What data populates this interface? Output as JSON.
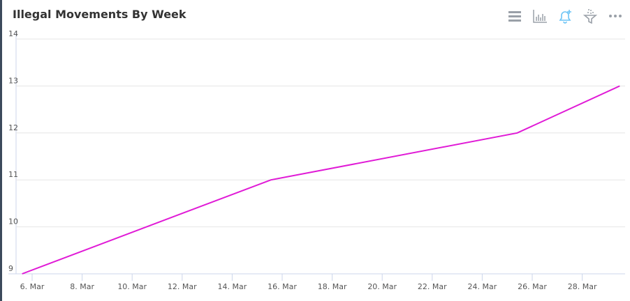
{
  "header": {
    "title": "Illegal Movements By Week"
  },
  "toolbar": [
    {
      "icon": "menu-icon"
    },
    {
      "icon": "bar-chart-icon"
    },
    {
      "icon": "bell-plus-icon"
    },
    {
      "icon": "filter-icon"
    },
    {
      "icon": "more-icon"
    }
  ],
  "colors": {
    "line": "#e01ad6",
    "icon": "#9aa0a8",
    "accent": "#6cc4f5"
  },
  "chart_data": {
    "type": "line",
    "title": "Illegal Movements By Week",
    "x": [
      "5.6 Mar",
      "15.55 Mar",
      "25.4 Mar",
      "29.5 Mar"
    ],
    "x_days": [
      5.6,
      15.55,
      25.4,
      29.5
    ],
    "series": [
      {
        "values": [
          9,
          11,
          12,
          13
        ]
      }
    ],
    "ylim": [
      9,
      14
    ],
    "yticks": [
      "9",
      "10",
      "11",
      "12",
      "13",
      "14"
    ],
    "xticks": [
      "6. Mar",
      "8. Mar",
      "10. Mar",
      "12. Mar",
      "14. Mar",
      "16. Mar",
      "18. Mar",
      "20. Mar",
      "22. Mar",
      "24. Mar",
      "26. Mar",
      "28. Mar"
    ],
    "xtick_days": [
      6,
      8,
      10,
      12,
      14,
      16,
      18,
      20,
      22,
      24,
      26,
      28
    ],
    "grid": true
  }
}
